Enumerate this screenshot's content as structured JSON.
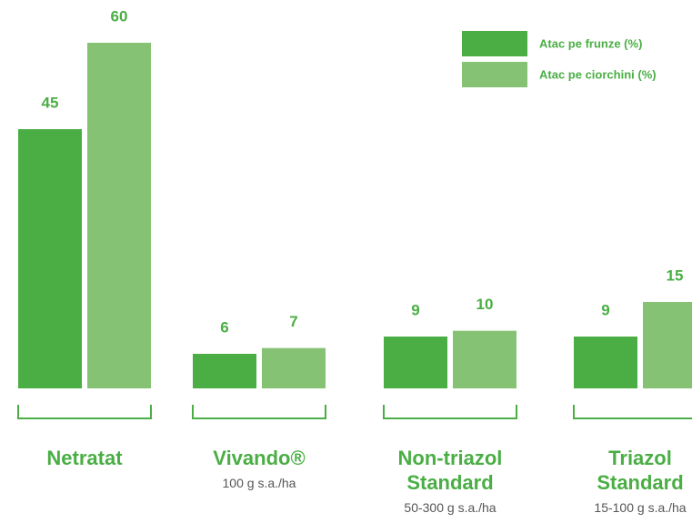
{
  "chart_data": {
    "type": "bar",
    "categories": [
      "Netratat",
      "Vivando®",
      "Non-triazol Standard",
      "Triazol Standard"
    ],
    "category_notes": [
      null,
      "100 g s.a./ha",
      "50-300 g s.a./ha",
      "15-100 g s.a./ha"
    ],
    "series": [
      {
        "name": "Atac pe frunze (%)",
        "color": "#4aae44",
        "values": [
          45,
          6,
          9,
          9
        ]
      },
      {
        "name": "Atac pe ciorchini (%)",
        "color": "#86c274",
        "values": [
          60,
          7,
          10,
          15
        ]
      }
    ],
    "legend": "top-right"
  }
}
